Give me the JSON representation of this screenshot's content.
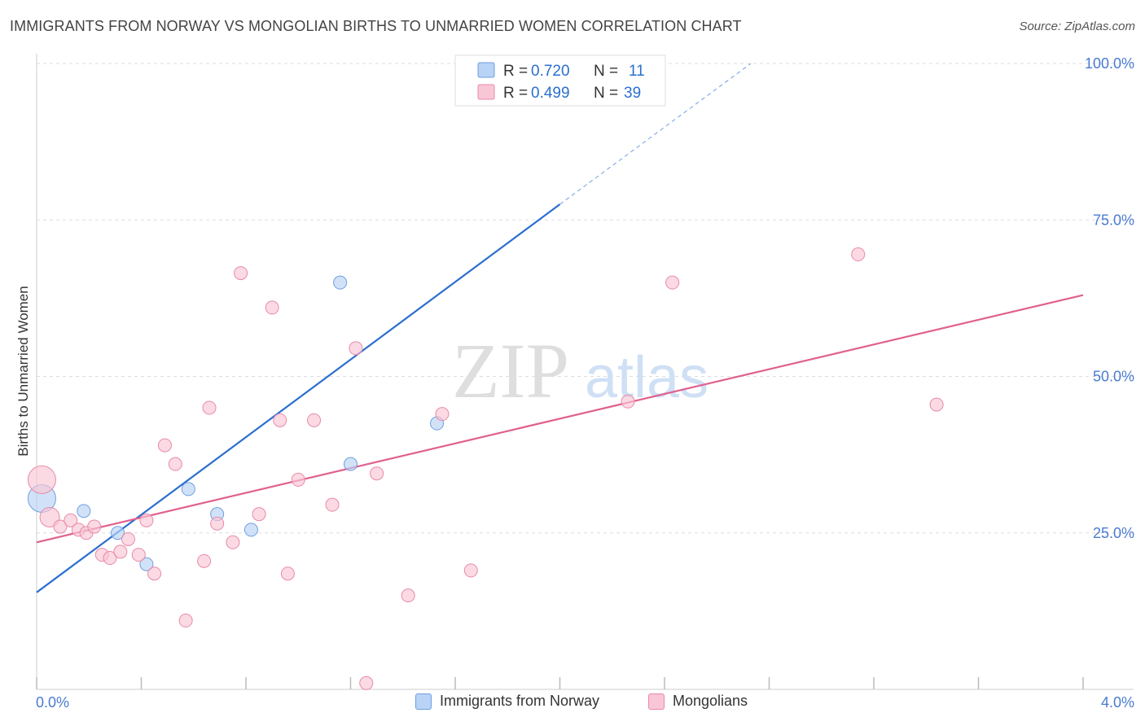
{
  "title": "IMMIGRANTS FROM NORWAY VS MONGOLIAN BIRTHS TO UNMARRIED WOMEN CORRELATION CHART",
  "source": "Source: ZipAtlas.com",
  "watermark": {
    "zip": "ZIP",
    "atlas": "atlas"
  },
  "colors": {
    "blue_fill": "#b8d3f5",
    "blue_stroke": "#6f9ee0",
    "blue_line": "#2b6fcf",
    "pink_fill": "#f9c6d6",
    "pink_stroke": "#e88aa8",
    "pink_line": "#e0608e",
    "tick_text": "#4a7bd0",
    "grid": "#dddddd"
  },
  "legend": {
    "rows": [
      {
        "r_label": "R = ",
        "r_value": "0.720",
        "n_label": "N = ",
        "n_value": "11",
        "series": "blue"
      },
      {
        "r_label": "R = ",
        "r_value": "0.499",
        "n_label": "N = ",
        "n_value": "39",
        "series": "pink"
      }
    ]
  },
  "bottom_legend": {
    "blue": "Immigrants from Norway",
    "pink": "Mongolians"
  },
  "chart_data": {
    "type": "scatter",
    "title": "IMMIGRANTS FROM NORWAY VS MONGOLIAN BIRTHS TO UNMARRIED WOMEN CORRELATION CHART",
    "xlabel": "",
    "ylabel": "Births to Unmarried Women",
    "xlim": [
      0,
      4.0
    ],
    "ylim": [
      0,
      100
    ],
    "x_tick_labels": [
      "0.0%",
      "4.0%"
    ],
    "y_ticks": [
      25,
      50,
      75,
      100
    ],
    "y_tick_labels": [
      "25.0%",
      "50.0%",
      "75.0%",
      "100.0%"
    ],
    "grid": true,
    "legend_position": "top-center",
    "series": [
      {
        "name": "Immigrants from Norway",
        "color": "#6f9ee0",
        "points": [
          {
            "x": 0.02,
            "y": 30.5,
            "size": "large"
          },
          {
            "x": 0.18,
            "y": 28.5
          },
          {
            "x": 0.31,
            "y": 25.0
          },
          {
            "x": 0.42,
            "y": 20.0
          },
          {
            "x": 0.58,
            "y": 32.0
          },
          {
            "x": 0.69,
            "y": 28.0
          },
          {
            "x": 0.82,
            "y": 25.5
          },
          {
            "x": 1.16,
            "y": 65.0
          },
          {
            "x": 1.2,
            "y": 36.0
          },
          {
            "x": 1.53,
            "y": 42.5
          },
          {
            "x": 1.64,
            "y": 100.0
          }
        ],
        "trend": {
          "x0": 0.0,
          "y0": 15.5,
          "x1": 2.0,
          "y1": 77.5,
          "dashed_to_x": 2.73,
          "dashed_to_y": 100.0
        }
      },
      {
        "name": "Mongolians",
        "color": "#e88aa8",
        "points": [
          {
            "x": 0.02,
            "y": 33.5,
            "size": "large"
          },
          {
            "x": 0.05,
            "y": 27.5,
            "size": "medium"
          },
          {
            "x": 0.09,
            "y": 26.0
          },
          {
            "x": 0.13,
            "y": 27.0
          },
          {
            "x": 0.16,
            "y": 25.5
          },
          {
            "x": 0.19,
            "y": 25.0
          },
          {
            "x": 0.22,
            "y": 26.0
          },
          {
            "x": 0.25,
            "y": 21.5
          },
          {
            "x": 0.28,
            "y": 21.0
          },
          {
            "x": 0.32,
            "y": 22.0
          },
          {
            "x": 0.35,
            "y": 24.0
          },
          {
            "x": 0.39,
            "y": 21.5
          },
          {
            "x": 0.42,
            "y": 27.0
          },
          {
            "x": 0.45,
            "y": 18.5
          },
          {
            "x": 0.49,
            "y": 39.0
          },
          {
            "x": 0.53,
            "y": 36.0
          },
          {
            "x": 0.57,
            "y": 11.0
          },
          {
            "x": 0.64,
            "y": 20.5
          },
          {
            "x": 0.66,
            "y": 45.0
          },
          {
            "x": 0.69,
            "y": 26.5
          },
          {
            "x": 0.75,
            "y": 23.5
          },
          {
            "x": 0.78,
            "y": 66.5
          },
          {
            "x": 0.85,
            "y": 28.0
          },
          {
            "x": 0.9,
            "y": 61.0
          },
          {
            "x": 0.93,
            "y": 43.0
          },
          {
            "x": 0.96,
            "y": 18.5
          },
          {
            "x": 1.0,
            "y": 33.5
          },
          {
            "x": 1.06,
            "y": 43.0
          },
          {
            "x": 1.13,
            "y": 29.5
          },
          {
            "x": 1.22,
            "y": 54.5
          },
          {
            "x": 1.26,
            "y": 1.0
          },
          {
            "x": 1.3,
            "y": 34.5
          },
          {
            "x": 1.42,
            "y": 15.0
          },
          {
            "x": 1.55,
            "y": 44.0
          },
          {
            "x": 1.66,
            "y": 19.0
          },
          {
            "x": 2.26,
            "y": 46.0
          },
          {
            "x": 2.43,
            "y": 65.0
          },
          {
            "x": 3.14,
            "y": 69.5
          },
          {
            "x": 3.44,
            "y": 45.5
          }
        ],
        "trend": {
          "x0": 0.0,
          "y0": 23.5,
          "x1": 4.0,
          "y1": 63.0
        }
      }
    ],
    "annotations": [
      {
        "series": "Immigrants from Norway",
        "R": 0.72,
        "N": 11
      },
      {
        "series": "Mongolians",
        "R": 0.499,
        "N": 39
      }
    ]
  }
}
